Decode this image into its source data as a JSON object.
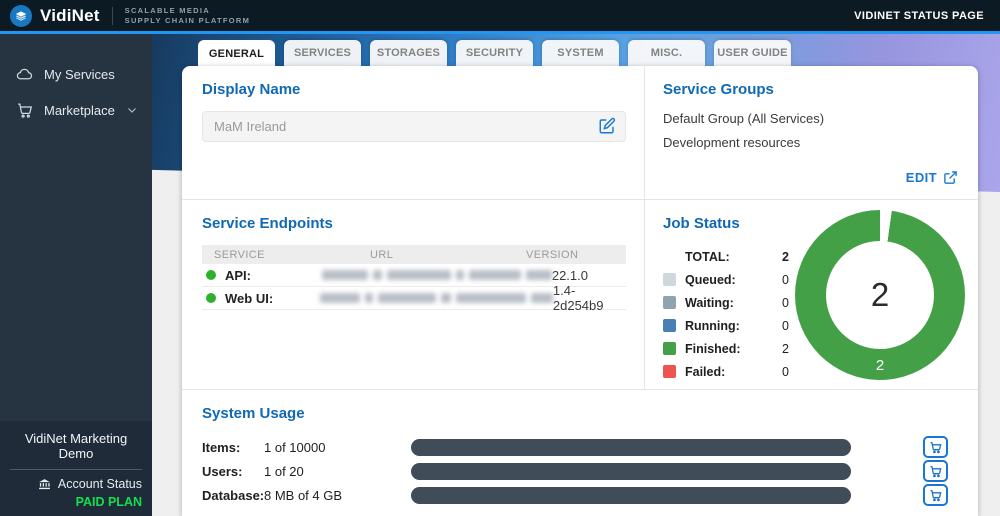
{
  "topbar": {
    "brand": "VidiNet",
    "tagline_line1": "SCALABLE MEDIA",
    "tagline_line2": "SUPPLY CHAIN PLATFORM",
    "right_link": "VIDINET STATUS PAGE"
  },
  "sidebar": {
    "items": [
      {
        "label": "My Services",
        "icon": "cloud-icon"
      },
      {
        "label": "Marketplace",
        "icon": "cart-icon",
        "has_chevron": true
      }
    ],
    "footer": {
      "org_name": "VidiNet Marketing Demo",
      "account_status_label": "Account Status",
      "plan_badge": "PAID PLAN"
    }
  },
  "tabs": [
    {
      "label": "GENERAL",
      "active": true
    },
    {
      "label": "SERVICES",
      "active": false
    },
    {
      "label": "STORAGES",
      "active": false
    },
    {
      "label": "SECURITY",
      "active": false
    },
    {
      "label": "SYSTEM",
      "active": false
    },
    {
      "label": "MISC.",
      "active": false
    },
    {
      "label": "USER GUIDE",
      "active": false
    }
  ],
  "display_name": {
    "title": "Display Name",
    "value": "MaM Ireland"
  },
  "service_groups": {
    "title": "Service Groups",
    "groups": [
      "Default Group (All Services)",
      "Development resources"
    ],
    "edit_label": "EDIT"
  },
  "service_endpoints": {
    "title": "Service Endpoints",
    "columns": [
      "SERVICE",
      "URL",
      "VERSION"
    ],
    "rows": [
      {
        "service": "API:",
        "status": "online",
        "url_redacted": true,
        "version": "22.1.0"
      },
      {
        "service": "Web UI:",
        "status": "online",
        "url_redacted": true,
        "version": "1.4-2d254b9"
      }
    ]
  },
  "job_status": {
    "title": "Job Status",
    "total": {
      "label": "TOTAL:",
      "value": "2"
    },
    "legend": [
      {
        "label": "Queued:",
        "value": "0",
        "color": "#cfd8dc"
      },
      {
        "label": "Waiting:",
        "value": "0",
        "color": "#90a4ae"
      },
      {
        "label": "Running:",
        "value": "0",
        "color": "#4a7fb5"
      },
      {
        "label": "Finished:",
        "value": "2",
        "color": "#43a047"
      },
      {
        "label": "Failed:",
        "value": "0",
        "color": "#ef5350"
      }
    ],
    "donut": {
      "center_value": "2",
      "segment_label": "2",
      "color": "#43a047"
    }
  },
  "system_usage": {
    "title": "System Usage",
    "rows": [
      {
        "label": "Items:",
        "value": "1 of 10000",
        "percent": 0.01
      },
      {
        "label": "Users:",
        "value": "1 of 20",
        "percent": 5
      },
      {
        "label": "Database:",
        "value": "8 MB of 4 GB",
        "percent": 0.2
      }
    ]
  },
  "colors": {
    "accent_blue": "#1976d2",
    "header_blue": "#1169b4",
    "topbar_accent": "#2196f3",
    "paid_plan_green": "#12e04e",
    "online_dot_green": "#2eb22e",
    "donut_green": "#43a047",
    "bar_track": "#404d59",
    "bar_fill_green": "#1fc94f"
  }
}
